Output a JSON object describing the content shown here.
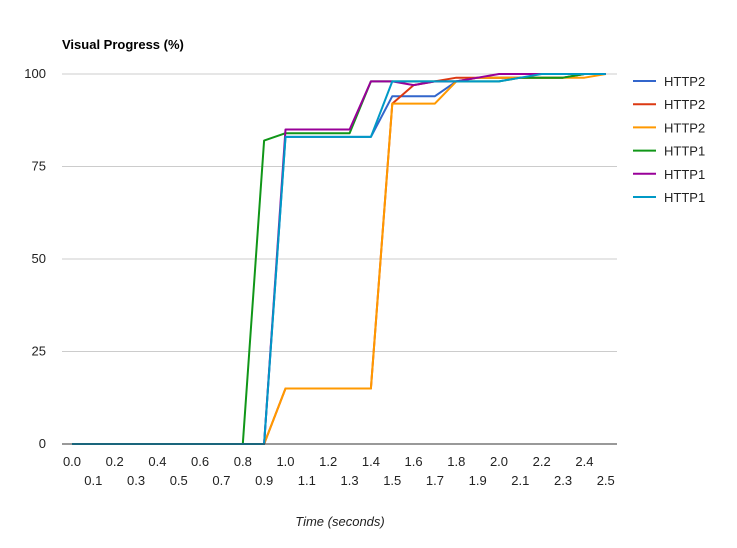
{
  "chart_data": {
    "type": "line",
    "title": "Visual Progress (%)",
    "xlabel": "Time (seconds)",
    "ylabel": "",
    "xlim": [
      0.0,
      2.55
    ],
    "ylim": [
      0,
      100
    ],
    "yticks": [
      0,
      25,
      50,
      75,
      100
    ],
    "xticks": [
      0.0,
      0.1,
      0.2,
      0.3,
      0.4,
      0.5,
      0.6,
      0.7,
      0.8,
      0.9,
      1.0,
      1.1,
      1.2,
      1.3,
      1.4,
      1.5,
      1.6,
      1.7,
      1.8,
      1.9,
      2.0,
      2.1,
      2.2,
      2.3,
      2.4,
      2.5
    ],
    "xtick_labels": [
      "0.0",
      "0.1",
      "0.2",
      "0.3",
      "0.4",
      "0.5",
      "0.6",
      "0.7",
      "0.8",
      "0.9",
      "1.0",
      "1.1",
      "1.2",
      "1.3",
      "1.4",
      "1.5",
      "1.6",
      "1.7",
      "1.8",
      "1.9",
      "2.0",
      "2.1",
      "2.2",
      "2.3",
      "2.4",
      "2.5"
    ],
    "grid": true,
    "legend_position": "right",
    "series": [
      {
        "name": "HTTP2",
        "color": "#3366cc",
        "points": [
          [
            0,
            0
          ],
          [
            0.9,
            0
          ],
          [
            1.0,
            83
          ],
          [
            1.1,
            83
          ],
          [
            1.2,
            83
          ],
          [
            1.3,
            83
          ],
          [
            1.4,
            83
          ],
          [
            1.5,
            94
          ],
          [
            1.6,
            94
          ],
          [
            1.7,
            94
          ],
          [
            1.8,
            98
          ],
          [
            1.9,
            99
          ],
          [
            2.0,
            99
          ],
          [
            2.1,
            99
          ],
          [
            2.2,
            99
          ],
          [
            2.3,
            99
          ],
          [
            2.4,
            100
          ],
          [
            2.5,
            100
          ]
        ]
      },
      {
        "name": "HTTP2",
        "color": "#dc3912",
        "points": [
          [
            0,
            0
          ],
          [
            0.9,
            0
          ],
          [
            1.0,
            15
          ],
          [
            1.1,
            15
          ],
          [
            1.2,
            15
          ],
          [
            1.3,
            15
          ],
          [
            1.4,
            15
          ],
          [
            1.5,
            92
          ],
          [
            1.6,
            97
          ],
          [
            1.7,
            98
          ],
          [
            1.8,
            99
          ],
          [
            1.9,
            99
          ],
          [
            2.0,
            99
          ],
          [
            2.1,
            99
          ],
          [
            2.2,
            99
          ],
          [
            2.3,
            99
          ],
          [
            2.4,
            100
          ],
          [
            2.5,
            100
          ]
        ]
      },
      {
        "name": "HTTP2",
        "color": "#ff9900",
        "points": [
          [
            0,
            0
          ],
          [
            0.9,
            0
          ],
          [
            1.0,
            15
          ],
          [
            1.1,
            15
          ],
          [
            1.2,
            15
          ],
          [
            1.3,
            15
          ],
          [
            1.4,
            15
          ],
          [
            1.5,
            92
          ],
          [
            1.6,
            92
          ],
          [
            1.7,
            92
          ],
          [
            1.8,
            98
          ],
          [
            1.9,
            99
          ],
          [
            2.0,
            99
          ],
          [
            2.1,
            99
          ],
          [
            2.2,
            99
          ],
          [
            2.3,
            99
          ],
          [
            2.4,
            99
          ],
          [
            2.5,
            100
          ]
        ]
      },
      {
        "name": "HTTP1",
        "color": "#109618",
        "points": [
          [
            0,
            0
          ],
          [
            0.8,
            0
          ],
          [
            0.9,
            82
          ],
          [
            1.0,
            84
          ],
          [
            1.1,
            84
          ],
          [
            1.2,
            84
          ],
          [
            1.3,
            84
          ],
          [
            1.4,
            98
          ],
          [
            1.5,
            98
          ],
          [
            1.6,
            98
          ],
          [
            1.7,
            98
          ],
          [
            1.8,
            98
          ],
          [
            1.9,
            98
          ],
          [
            2.0,
            98
          ],
          [
            2.1,
            99
          ],
          [
            2.2,
            99
          ],
          [
            2.3,
            99
          ],
          [
            2.4,
            100
          ],
          [
            2.5,
            100
          ]
        ]
      },
      {
        "name": "HTTP1",
        "color": "#990099",
        "points": [
          [
            0,
            0
          ],
          [
            0.9,
            0
          ],
          [
            1.0,
            85
          ],
          [
            1.1,
            85
          ],
          [
            1.2,
            85
          ],
          [
            1.3,
            85
          ],
          [
            1.4,
            98
          ],
          [
            1.5,
            98
          ],
          [
            1.6,
            97
          ],
          [
            1.7,
            98
          ],
          [
            1.8,
            98
          ],
          [
            1.9,
            99
          ],
          [
            2.0,
            100
          ],
          [
            2.1,
            100
          ],
          [
            2.2,
            100
          ],
          [
            2.3,
            100
          ],
          [
            2.4,
            100
          ],
          [
            2.5,
            100
          ]
        ]
      },
      {
        "name": "HTTP1",
        "color": "#0099c6",
        "points": [
          [
            0,
            0
          ],
          [
            0.9,
            0
          ],
          [
            1.0,
            83
          ],
          [
            1.1,
            83
          ],
          [
            1.2,
            83
          ],
          [
            1.3,
            83
          ],
          [
            1.4,
            83
          ],
          [
            1.5,
            98
          ],
          [
            1.6,
            98
          ],
          [
            1.7,
            98
          ],
          [
            1.8,
            98
          ],
          [
            1.9,
            98
          ],
          [
            2.0,
            98
          ],
          [
            2.1,
            99
          ],
          [
            2.2,
            100
          ],
          [
            2.3,
            100
          ],
          [
            2.4,
            100
          ],
          [
            2.5,
            100
          ]
        ]
      }
    ]
  }
}
